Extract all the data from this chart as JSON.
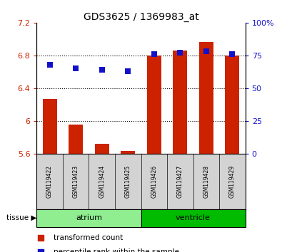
{
  "title": "GDS3625 / 1369983_at",
  "samples": [
    "GSM119422",
    "GSM119423",
    "GSM119424",
    "GSM119425",
    "GSM119426",
    "GSM119427",
    "GSM119428",
    "GSM119429"
  ],
  "transformed_count": [
    6.27,
    5.96,
    5.72,
    5.63,
    6.8,
    6.86,
    6.96,
    6.8
  ],
  "percentile_rank": [
    68,
    65,
    64,
    63,
    76,
    77,
    78,
    76
  ],
  "ylim_left": [
    5.6,
    7.2
  ],
  "ylim_right": [
    0,
    100
  ],
  "yticks_left": [
    5.6,
    6.0,
    6.4,
    6.8,
    7.2
  ],
  "ytick_labels_left": [
    "5.6",
    "6",
    "6.4",
    "6.8",
    "7.2"
  ],
  "yticks_right": [
    0,
    25,
    50,
    75,
    100
  ],
  "ytick_labels_right": [
    "0",
    "25",
    "50",
    "75",
    "100%"
  ],
  "groups": [
    {
      "label": "atrium",
      "indices": [
        0,
        1,
        2,
        3
      ],
      "color": "#90EE90"
    },
    {
      "label": "ventricle",
      "indices": [
        4,
        5,
        6,
        7
      ],
      "color": "#00BB00"
    }
  ],
  "bar_color": "#CC2200",
  "dot_color": "#1111CC",
  "bar_width": 0.55,
  "dot_size": 35,
  "background_color": "#ffffff",
  "left_axis_color": "#CC2200",
  "right_axis_color": "#1111CC",
  "grid_yticks": [
    6.0,
    6.4,
    6.8
  ]
}
